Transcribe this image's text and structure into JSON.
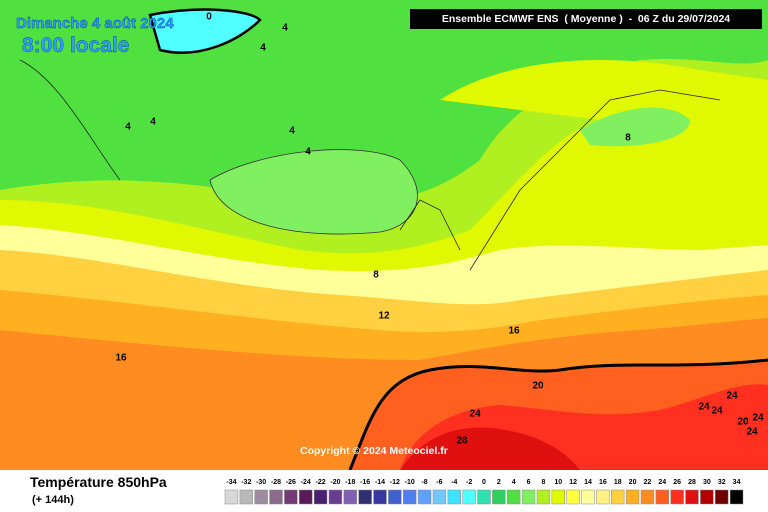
{
  "header": {
    "date": "Dimanche 4 août 2024",
    "time": "8:00 locale",
    "model": "Ensemble ECMWF ENS  ( Moyenne )  -  06 Z du 29/07/2024"
  },
  "footer": {
    "variable": "Température 850hPa",
    "lead": "(+ 144h)",
    "copyright": "Copyright © 2024 Meteociel.fr"
  },
  "legend": {
    "items": [
      {
        "value": -34,
        "color": "#d8d8d8"
      },
      {
        "value": -32,
        "color": "#b8b8b8"
      },
      {
        "value": -30,
        "color": "#a08ca0"
      },
      {
        "value": -28,
        "color": "#8c6a8c"
      },
      {
        "value": -26,
        "color": "#743c74"
      },
      {
        "value": -24,
        "color": "#5a1a5a"
      },
      {
        "value": -22,
        "color": "#4a2070"
      },
      {
        "value": -20,
        "color": "#6a3c90"
      },
      {
        "value": -18,
        "color": "#8060b0"
      },
      {
        "value": -16,
        "color": "#303070"
      },
      {
        "value": -14,
        "color": "#3838a0"
      },
      {
        "value": -12,
        "color": "#4060d0"
      },
      {
        "value": -10,
        "color": "#5080f0"
      },
      {
        "value": -8,
        "color": "#60a0ff"
      },
      {
        "value": -6,
        "color": "#70c8ff"
      },
      {
        "value": -4,
        "color": "#40e0ff"
      },
      {
        "value": -2,
        "color": "#50ffff"
      },
      {
        "value": 0,
        "color": "#30e0b0"
      },
      {
        "value": 2,
        "color": "#30d060"
      },
      {
        "value": 4,
        "color": "#50e040"
      },
      {
        "value": 6,
        "color": "#80f060"
      },
      {
        "value": 8,
        "color": "#b0f020"
      },
      {
        "value": 10,
        "color": "#e0f800"
      },
      {
        "value": 12,
        "color": "#ffff40"
      },
      {
        "value": 14,
        "color": "#ffff9a"
      },
      {
        "value": 16,
        "color": "#fff080"
      },
      {
        "value": 18,
        "color": "#ffd040"
      },
      {
        "value": 20,
        "color": "#ffb020"
      },
      {
        "value": 22,
        "color": "#ff8c20"
      },
      {
        "value": 24,
        "color": "#ff6020"
      },
      {
        "value": 26,
        "color": "#ff3020"
      },
      {
        "value": 28,
        "color": "#e01010"
      },
      {
        "value": 30,
        "color": "#b00000"
      },
      {
        "value": 32,
        "color": "#700000"
      },
      {
        "value": 34,
        "color": "#000000"
      }
    ]
  },
  "contour_labels": [
    0,
    4,
    4,
    4,
    4,
    4,
    4,
    8,
    8,
    12,
    16,
    16,
    20,
    24,
    24,
    24,
    24,
    24,
    20,
    24,
    28
  ]
}
